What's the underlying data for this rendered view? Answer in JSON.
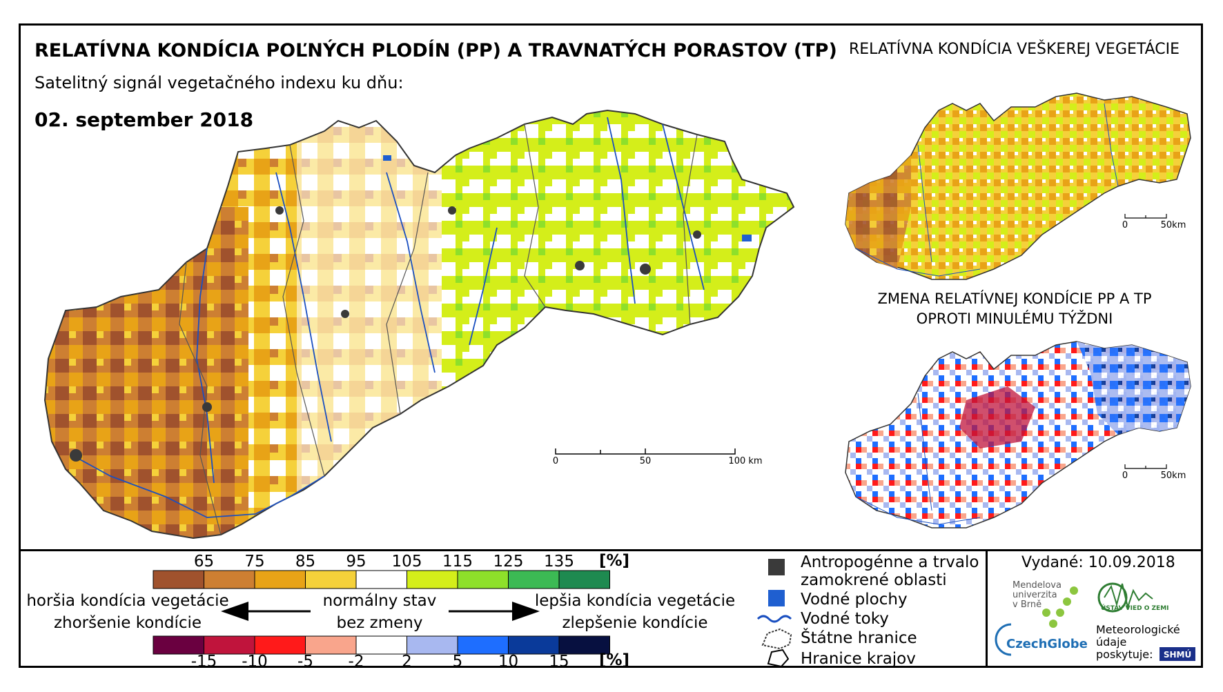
{
  "header": {
    "title": "RELATÍVNA KONDÍCIA POĽNÝCH PLODÍN (PP) A TRAVNATÝCH PORASTOV (TP)",
    "subtitle": "Satelitný signál vegetačného indexu ku dňu:",
    "date": "02. september 2018",
    "right_title": "RELATÍVNA KONDÍCIA VEŠKEREJ VEGETÁCIE",
    "change_title_1": "ZMENA RELATÍVNEJ KONDÍCIE PP A TP",
    "change_title_2": "OPROTI MINULÉMU TÝŽDNI"
  },
  "scale_main": {
    "labels": [
      "0",
      "50",
      "100 km"
    ]
  },
  "scale_small": {
    "labels": [
      "0",
      "50km"
    ]
  },
  "condition_scale": {
    "ticks": [
      "65",
      "75",
      "85",
      "95",
      "105",
      "115",
      "125",
      "135"
    ],
    "unit": "[%]",
    "colors": [
      "#a0522d",
      "#cd7f32",
      "#e8a317",
      "#f5d13a",
      "#ffffff",
      "#d4ee1a",
      "#8ee02a",
      "#3cba54",
      "#1e8a50"
    ]
  },
  "change_scale": {
    "ticks": [
      "-15",
      "-10",
      "-5",
      "-2",
      "2",
      "5",
      "10",
      "15"
    ],
    "unit": "[%]",
    "colors": [
      "#6a0040",
      "#c0143c",
      "#ff1a1a",
      "#f9a58c",
      "#ffffff",
      "#a8b8f0",
      "#1e6eff",
      "#0a3a9a",
      "#071040"
    ]
  },
  "scale_text": {
    "worse_1": "horšia kondícia vegetácie",
    "worse_2": "zhoršenie kondície",
    "normal_1": "normálny stav",
    "normal_2": "bez zmeny",
    "better_1": "lepšia kondícia vegetácie",
    "better_2": "zlepšenie kondície"
  },
  "legend": {
    "anthro_1": "Antropogénne a trvalo",
    "anthro_2": "zamokrené oblasti",
    "water_bodies": "Vodné plochy",
    "rivers": "Vodné toky",
    "state_border": "Štátne hranice",
    "region_border": "Hranice krajov",
    "colors": {
      "anthro": "#3a3a3a",
      "water": "#1f5fd0",
      "river": "#1a4fc0"
    }
  },
  "footer": {
    "issued": "Vydané: 10.09.2018",
    "mendel_1": "Mendelova",
    "mendel_2": "univerzita",
    "mendel_3": "v Brně",
    "czechglobe": "CzechGlobe",
    "uvgz": "ÚSTAV VIED O ZEMI",
    "met_1": "Meteorologické",
    "met_2": "údaje",
    "met_3": "poskytuje:",
    "shmu": "SHMÚ"
  }
}
